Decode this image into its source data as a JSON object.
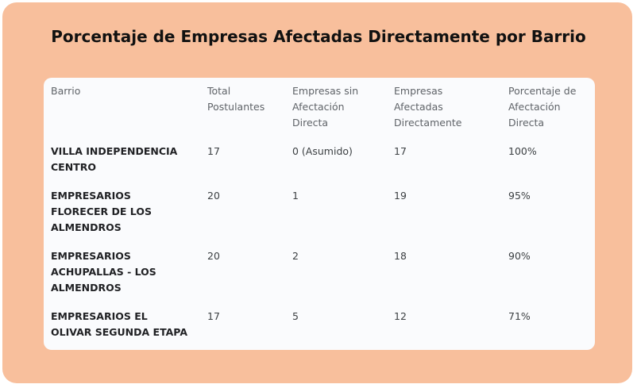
{
  "title": "Porcentaje de Empresas Afectadas Directamente por Barrio",
  "table": {
    "headers": [
      [
        "Barrio"
      ],
      [
        "Total",
        "Postulantes"
      ],
      [
        "Empresas sin",
        "Afectación",
        "Directa"
      ],
      [
        "Empresas",
        "Afectadas",
        "Directamente"
      ],
      [
        "Porcentaje de",
        "Afectación",
        "Directa"
      ]
    ],
    "rows": [
      {
        "barrio": [
          "VILLA INDEPENDENCIA",
          "CENTRO"
        ],
        "total": "17",
        "sin_afectacion": "0 (Asumido)",
        "afectadas": "17",
        "porcentaje": "100%"
      },
      {
        "barrio": [
          "EMPRESARIOS",
          "FLORECER DE LOS",
          "ALMENDROS"
        ],
        "total": "20",
        "sin_afectacion": "1",
        "afectadas": "19",
        "porcentaje": "95%"
      },
      {
        "barrio": [
          "EMPRESARIOS",
          "ACHUPALLAS - LOS",
          "ALMENDROS"
        ],
        "total": "20",
        "sin_afectacion": "2",
        "afectadas": "18",
        "porcentaje": "90%"
      },
      {
        "barrio": [
          "EMPRESARIOS EL",
          "OLIVAR SEGUNDA ETAPA"
        ],
        "total": "17",
        "sin_afectacion": "5",
        "afectadas": "12",
        "porcentaje": "71%"
      }
    ]
  },
  "colors": {
    "background": "#f8bf9c",
    "card": "#fafbfd",
    "title": "#111111",
    "header_text": "#5f6368",
    "body_text": "#3c4043"
  }
}
